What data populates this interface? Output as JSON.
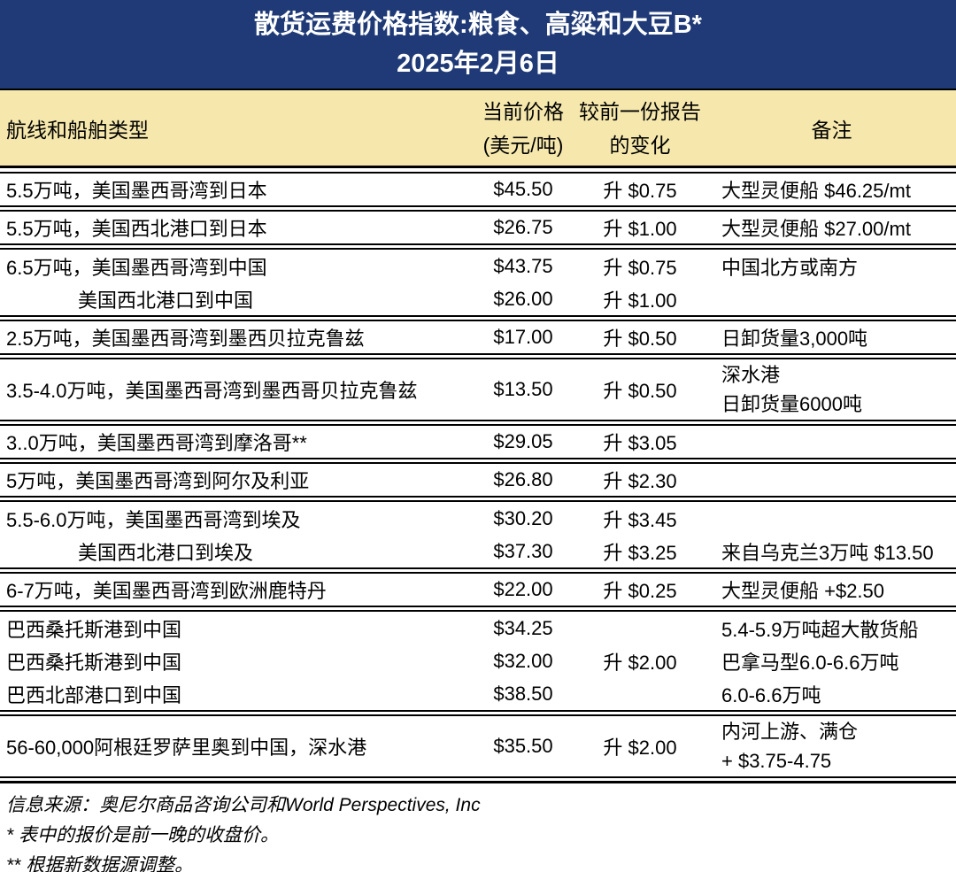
{
  "title": {
    "line1": "散货运费价格指数:粮食、高粱和大豆B*",
    "line2": "2025年2月6日"
  },
  "columns": {
    "route": "航线和船舶类型",
    "price_line1": "当前价格",
    "price_line2": "(美元/吨)",
    "change_line1": "较前一份报告",
    "change_line2": "的变化",
    "notes": "备注"
  },
  "colors": {
    "banner_bg": "#1f3a76",
    "banner_text": "#ffffff",
    "subheader_bg": "#f6e8ad",
    "body_text": "#000000"
  },
  "groups": [
    {
      "rows": [
        {
          "route": "5.5万吨，美国墨西哥湾到日本",
          "price": "$45.50",
          "change": "升 $0.75",
          "note1": "大型灵便船 $46.25/mt"
        }
      ]
    },
    {
      "rows": [
        {
          "route": "5.5万吨，美国西北港口到日本",
          "price": "$26.75",
          "change": "升 $1.00",
          "note1": "大型灵便船 $27.00/mt"
        }
      ]
    },
    {
      "rows": [
        {
          "route": "6.5万吨，美国墨西哥湾到中国",
          "price": "$43.75",
          "change": "升 $0.75",
          "note1": "中国北方或南方"
        },
        {
          "route": "美国西北港口到中国",
          "price": "$26.00",
          "change": "升 $1.00",
          "note1": ""
        }
      ]
    },
    {
      "rows": [
        {
          "route": "2.5万吨，美国墨西哥湾到墨西贝拉克鲁兹",
          "price": "$17.00",
          "change": "升 $0.50",
          "note1": "日卸货量3,000吨"
        }
      ]
    },
    {
      "rows": [
        {
          "route": "3.5-4.0万吨，美国墨西哥湾到墨西哥贝拉克鲁兹",
          "price": "$13.50",
          "change": "升 $0.50",
          "note1": "深水港",
          "note2": "日卸货量6000吨"
        }
      ]
    },
    {
      "rows": [
        {
          "route": "3..0万吨，美国墨西哥湾到摩洛哥**",
          "price": "$29.05",
          "change": "升 $3.05",
          "note1": ""
        }
      ]
    },
    {
      "rows": [
        {
          "route": "5万吨，美国墨西哥湾到阿尔及利亚",
          "price": "$26.80",
          "change": "升 $2.30",
          "note1": ""
        }
      ]
    },
    {
      "rows": [
        {
          "route": "5.5-6.0万吨，美国墨西哥湾到埃及",
          "price": "$30.20",
          "change": "升 $3.45",
          "note1": ""
        },
        {
          "route": "美国西北港口到埃及",
          "price": "$37.30",
          "change": "升 $3.25",
          "note1": "来自乌克兰3万吨 $13.50"
        }
      ]
    },
    {
      "rows": [
        {
          "route": "6-7万吨，美国墨西哥湾到欧洲鹿特丹",
          "price": "$22.00",
          "change": "升 $0.25",
          "note1": "大型灵便船 +$2.50"
        }
      ]
    },
    {
      "rows": [
        {
          "route": "巴西桑托斯港到中国",
          "price": "$34.25",
          "change": "",
          "note1": "5.4-5.9万吨超大散货船"
        },
        {
          "route": "巴西桑托斯港到中国",
          "price": "$32.00",
          "change": "升 $2.00",
          "note1": "巴拿马型6.0-6.6万吨"
        },
        {
          "route": "巴西北部港口到中国",
          "price": "$38.50",
          "change": "",
          "note1": "6.0-6.6万吨"
        }
      ]
    },
    {
      "rows": [
        {
          "route": "56-60,000阿根廷罗萨里奥到中国，深水港",
          "price": "$35.50",
          "change": "升 $2.00",
          "note1": "内河上游、满仓",
          "note2": "+ $3.75-4.75"
        }
      ]
    }
  ],
  "footer": {
    "source": "信息来源：奥尼尔商品咨询公司和World Perspectives, Inc",
    "note1": "* 表中的报价是前一晚的收盘价。",
    "note2": "** 根据新数据源调整。"
  }
}
